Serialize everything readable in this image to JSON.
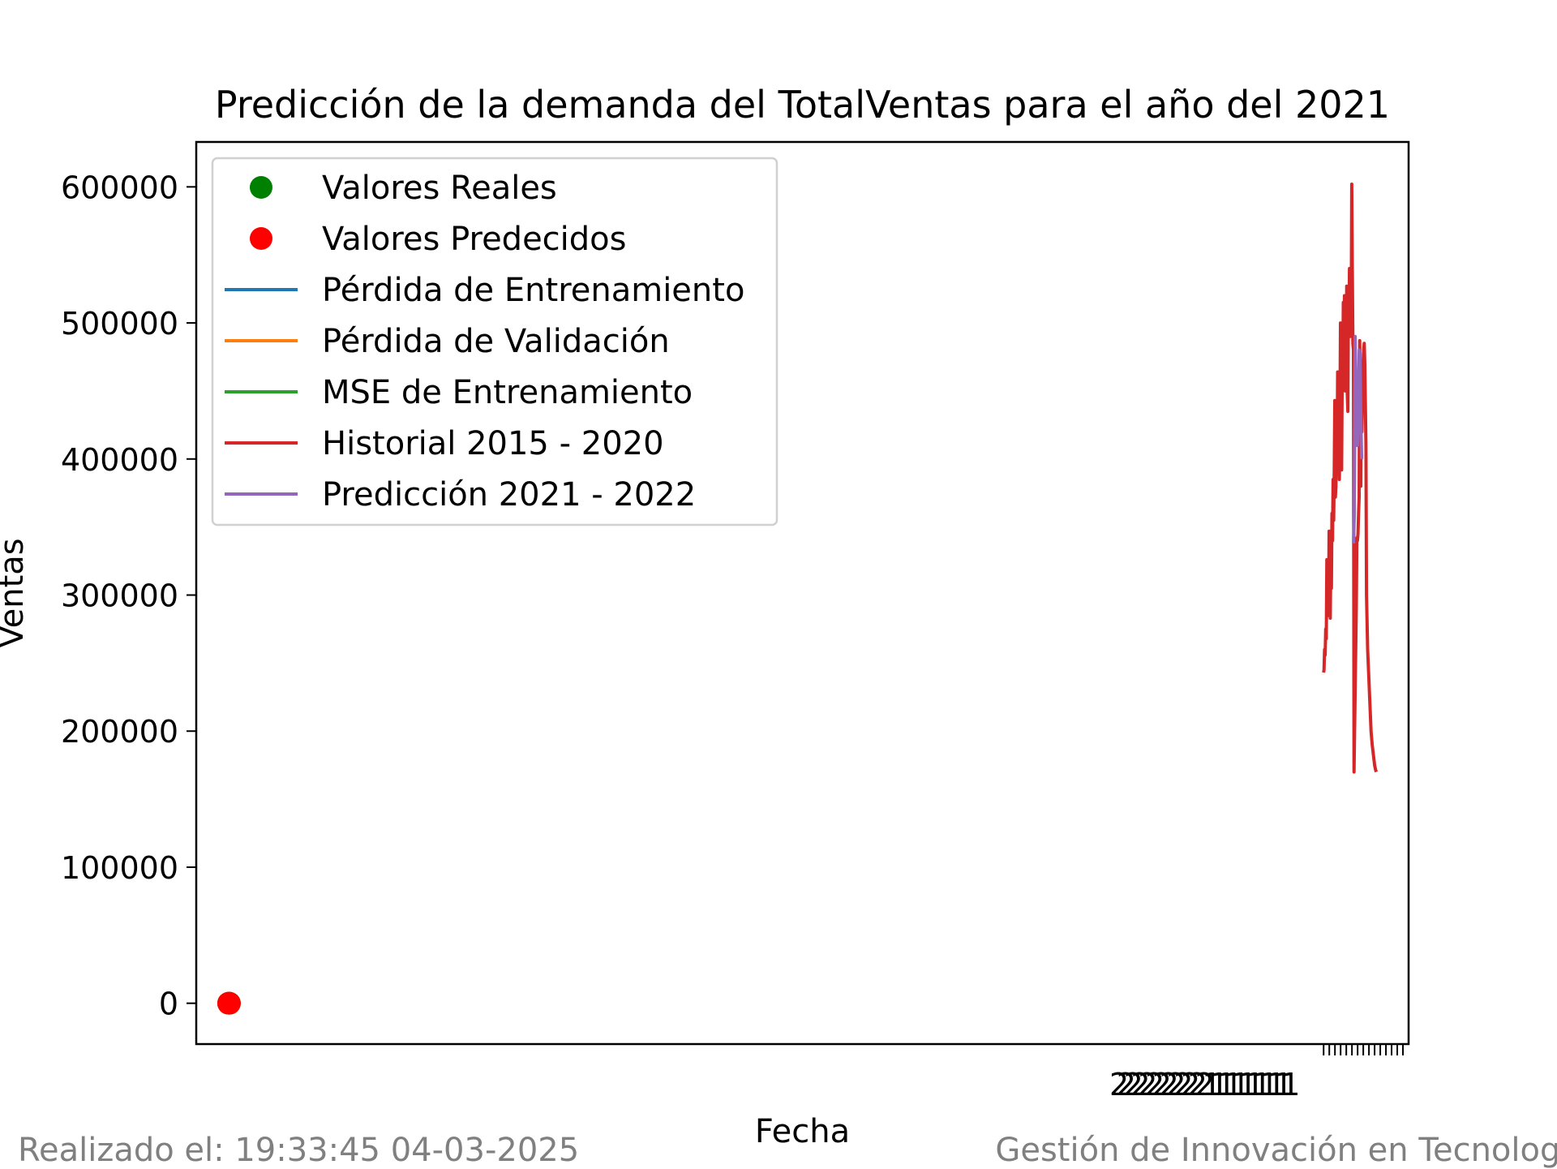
{
  "footer": {
    "left": "Realizado el: 19:33:45 04-03-2025",
    "right": "Gestión de Innovación en Tecnología"
  },
  "chart_data": {
    "type": "line",
    "title": "Predicción de la demanda del TotalVentas para el año del 2021",
    "xlabel": "Fecha",
    "ylabel": "Ventas",
    "ylim": [
      -30000,
      633000
    ],
    "yticks": [
      0,
      100000,
      200000,
      300000,
      400000,
      500000,
      600000
    ],
    "grid": false,
    "legend_position": "top-left",
    "x_tick_labels_overlapping": "2222222222222111111111111",
    "legend": [
      {
        "label": "Valores Reales",
        "marker": "dot",
        "color": "#008000"
      },
      {
        "label": "Valores Predecidos",
        "marker": "dot",
        "color": "#ff0000"
      },
      {
        "label": "Pérdida de Entrenamiento",
        "marker": "line",
        "color": "#1f77b4"
      },
      {
        "label": "Pérdida de Validación",
        "marker": "line",
        "color": "#ff7f0e"
      },
      {
        "label": "MSE de Entrenamiento",
        "marker": "line",
        "color": "#2ca02c"
      },
      {
        "label": "Historial 2015 - 2020",
        "marker": "line",
        "color": "#d62728"
      },
      {
        "label": "Predicción 2021 - 2022",
        "marker": "line",
        "color": "#9467bd"
      }
    ],
    "scatter_series": [
      {
        "name": "Valores Reales",
        "color": "#008000",
        "x": [
          0,
          1
        ],
        "y": [
          0,
          0
        ]
      },
      {
        "name": "Valores Predecidos",
        "color": "#ff0000",
        "x": [
          0,
          1
        ],
        "y": [
          0,
          0
        ]
      }
    ],
    "loss_series": [
      {
        "name": "Pérdida de Entrenamiento",
        "color": "#1f77b4",
        "x": [
          0,
          1,
          2
        ],
        "y": [
          0,
          0,
          0
        ]
      },
      {
        "name": "Pérdida de Validación",
        "color": "#ff7f0e",
        "x": [
          0,
          1,
          2
        ],
        "y": [
          0,
          0,
          0
        ]
      },
      {
        "name": "MSE de Entrenamiento",
        "color": "#2ca02c",
        "x": [
          0,
          1,
          2
        ],
        "y": [
          0,
          0,
          0
        ]
      }
    ],
    "historial": {
      "name": "Historial 2015 - 2020",
      "color": "#d62728",
      "x": [
        1353.0,
        1353.5,
        1354.2,
        1354.9,
        1355.6,
        1356.3,
        1357.0,
        1357.7,
        1358.4,
        1359.1,
        1359.8,
        1360.5,
        1361.2,
        1361.9,
        1362.6,
        1363.3,
        1364.0,
        1364.7,
        1365.4,
        1366.1,
        1366.8,
        1367.5,
        1368.2,
        1368.9,
        1369.6,
        1370.3,
        1371.0,
        1371.7,
        1372.4,
        1373.1,
        1373.8,
        1374.5,
        1375.2,
        1375.9,
        1376.6,
        1377.3,
        1378.0,
        1378.7,
        1379.4,
        1380.1,
        1380.8,
        1381.5,
        1382.2,
        1382.9,
        1383.6,
        1384.3,
        1385.0,
        1385.7,
        1386.4,
        1387.1,
        1387.8,
        1388.5,
        1389.2,
        1389.9,
        1390.6,
        1391.3,
        1392.0,
        1392.7,
        1393.4,
        1394.1,
        1394.8,
        1395.5,
        1396.2,
        1396.9,
        1397.6,
        1398.3,
        1399.0,
        1399.7,
        1400.4,
        1401.1,
        1401.8,
        1402.5,
        1403.2,
        1403.9,
        1404.6,
        1405.3,
        1406.0,
        1406.7,
        1407.4,
        1408.1,
        1408.8,
        1409.5,
        1410.2,
        1410.9,
        1411.6,
        1412.3,
        1413.0,
        1414.0,
        1415.0,
        1416.0,
        1417.0,
        1418.0
      ],
      "y": [
        243000,
        245000,
        260000,
        256000,
        275000,
        268000,
        326000,
        300000,
        285000,
        295000,
        347000,
        310000,
        283000,
        330000,
        305000,
        360000,
        340000,
        385000,
        355000,
        390000,
        443000,
        372000,
        380000,
        420000,
        395000,
        464000,
        405000,
        435000,
        385000,
        425000,
        500000,
        445000,
        392000,
        460000,
        455000,
        515000,
        485000,
        520000,
        450000,
        500000,
        470000,
        527000,
        448000,
        435000,
        505000,
        495000,
        540000,
        490000,
        530000,
        495000,
        602000,
        540000,
        485000,
        480000,
        170000,
        200000,
        230000,
        260000,
        290000,
        342000,
        340000,
        345000,
        360000,
        372000,
        487000,
        455000,
        380000,
        460000,
        420000,
        450000,
        470000,
        480000,
        485000,
        470000,
        440000,
        410000,
        300000,
        280000,
        260000,
        250000,
        240000,
        230000,
        220000,
        210000,
        200000,
        195000,
        190000,
        185000,
        180000,
        175000,
        172000,
        170000
      ]
    },
    "prediccion": {
      "name": "Predicción 2021 - 2022",
      "color": "#9467bd",
      "x": [
        1390.0,
        1391.0,
        1392.0,
        1393.0,
        1394.0,
        1395.0,
        1396.0,
        1397.0,
        1398.0,
        1399.0,
        1400.0
      ],
      "y": [
        338000,
        360000,
        490000,
        450000,
        410000,
        410000,
        440000,
        480000,
        478000,
        430000,
        400000
      ]
    },
    "xlim": [
      -40,
      1458
    ],
    "xticks": [
      1353,
      1360,
      1367,
      1374,
      1381,
      1388,
      1395,
      1402,
      1409,
      1416,
      1423,
      1430,
      1437,
      1444,
      1451
    ]
  }
}
